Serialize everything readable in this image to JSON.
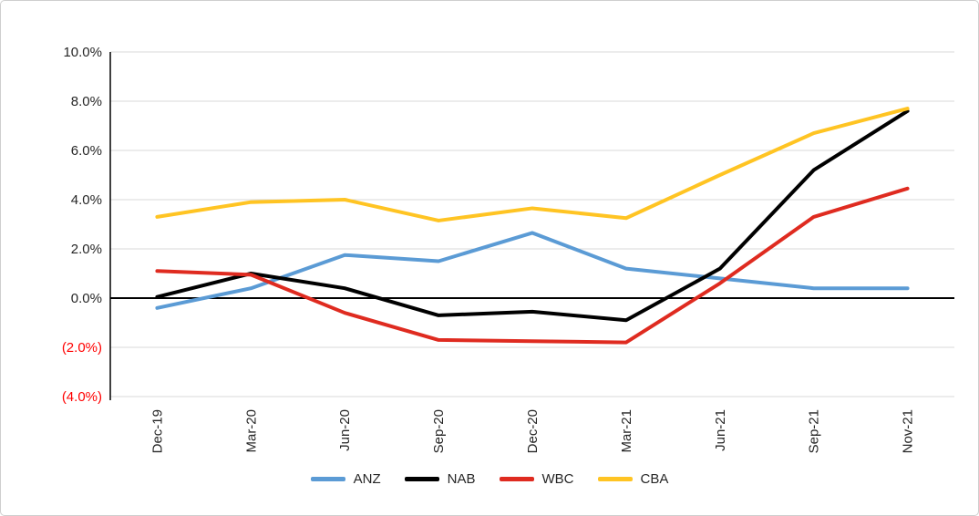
{
  "chart_data": {
    "type": "line",
    "title": "",
    "xlabel": "",
    "ylabel": "",
    "categories": [
      "Dec-19",
      "Mar-20",
      "Jun-20",
      "Sep-20",
      "Dec-20",
      "Mar-21",
      "Jun-21",
      "Sep-21",
      "Nov-21"
    ],
    "series": [
      {
        "name": "ANZ",
        "color": "#5B9BD5",
        "values": [
          -0.4,
          0.4,
          1.75,
          1.5,
          2.65,
          1.2,
          0.8,
          0.4,
          0.4
        ]
      },
      {
        "name": "NAB",
        "color": "#000000",
        "values": [
          0.05,
          1.0,
          0.4,
          -0.7,
          -0.55,
          -0.9,
          1.2,
          5.2,
          7.6
        ]
      },
      {
        "name": "WBC",
        "color": "#DF2B20",
        "values": [
          1.1,
          0.95,
          -0.6,
          -1.7,
          -1.75,
          -1.8,
          0.6,
          3.3,
          4.45
        ]
      },
      {
        "name": "CBA",
        "color": "#FFC423",
        "values": [
          3.3,
          3.9,
          4.0,
          3.15,
          3.65,
          3.25,
          5.0,
          6.7,
          7.7
        ]
      }
    ],
    "ylim": [
      -4,
      10
    ],
    "ytick_step": 2,
    "ytick_labels": [
      "(4.0%)",
      "(2.0%)",
      "0.0%",
      "2.0%",
      "4.0%",
      "6.0%",
      "8.0%",
      "10.0%"
    ],
    "grid": true,
    "grid_color": "#D9D9D9",
    "zero_line_color": "#000000",
    "axis_line_color": "#000000",
    "axis_text_color": "#262626",
    "negative_label_color": "#FF0000",
    "legend_position": "bottom"
  }
}
